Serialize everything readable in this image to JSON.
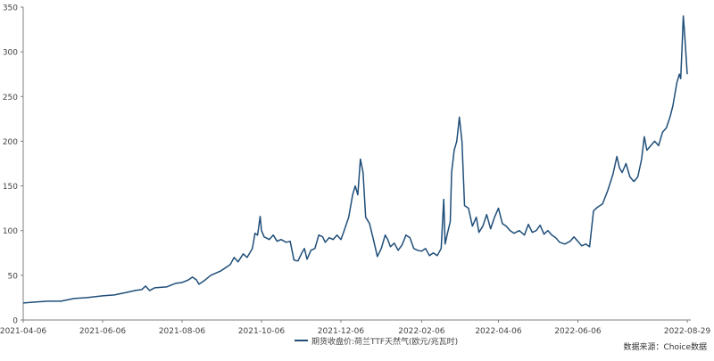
{
  "chart_data": {
    "type": "line",
    "title": "",
    "xlabel": "",
    "ylabel": "",
    "ylim": [
      0,
      350
    ],
    "y_ticks": [
      0,
      50,
      100,
      150,
      200,
      250,
      300,
      350
    ],
    "x_ticks": [
      "2021-04-06",
      "2021-06-06",
      "2021-08-06",
      "2021-10-06",
      "2021-12-06",
      "2022-02-06",
      "2022-04-06",
      "2022-06-06",
      "2022-08-29"
    ],
    "grid": false,
    "legend_position": "bottom-center",
    "series": [
      {
        "name": "期货收盘价:荷兰TTF天然气(欧元/兆瓦时)",
        "color": "#1f4e79",
        "points": [
          [
            "2021-04-06",
            19
          ],
          [
            "2021-04-15",
            20
          ],
          [
            "2021-04-25",
            21
          ],
          [
            "2021-05-05",
            21
          ],
          [
            "2021-05-15",
            24
          ],
          [
            "2021-05-25",
            25
          ],
          [
            "2021-06-06",
            27
          ],
          [
            "2021-06-15",
            28
          ],
          [
            "2021-06-25",
            31
          ],
          [
            "2021-07-01",
            33
          ],
          [
            "2021-07-06",
            34
          ],
          [
            "2021-07-09",
            38
          ],
          [
            "2021-07-12",
            33
          ],
          [
            "2021-07-16",
            36
          ],
          [
            "2021-07-25",
            37
          ],
          [
            "2021-08-01",
            41
          ],
          [
            "2021-08-06",
            42
          ],
          [
            "2021-08-11",
            45
          ],
          [
            "2021-08-14",
            48
          ],
          [
            "2021-08-17",
            45
          ],
          [
            "2021-08-19",
            40
          ],
          [
            "2021-08-23",
            44
          ],
          [
            "2021-08-28",
            50
          ],
          [
            "2021-09-05",
            55
          ],
          [
            "2021-09-12",
            62
          ],
          [
            "2021-09-15",
            70
          ],
          [
            "2021-09-18",
            65
          ],
          [
            "2021-09-22",
            74
          ],
          [
            "2021-09-25",
            70
          ],
          [
            "2021-09-29",
            80
          ],
          [
            "2021-10-01",
            97
          ],
          [
            "2021-10-03",
            95
          ],
          [
            "2021-10-05",
            116
          ],
          [
            "2021-10-06",
            100
          ],
          [
            "2021-10-08",
            93
          ],
          [
            "2021-10-12",
            90
          ],
          [
            "2021-10-15",
            95
          ],
          [
            "2021-10-18",
            88
          ],
          [
            "2021-10-21",
            90
          ],
          [
            "2021-10-25",
            87
          ],
          [
            "2021-10-28",
            88
          ],
          [
            "2021-10-31",
            67
          ],
          [
            "2021-11-03",
            66
          ],
          [
            "2021-11-06",
            75
          ],
          [
            "2021-11-08",
            80
          ],
          [
            "2021-11-10",
            68
          ],
          [
            "2021-11-13",
            78
          ],
          [
            "2021-11-16",
            80
          ],
          [
            "2021-11-19",
            95
          ],
          [
            "2021-11-22",
            93
          ],
          [
            "2021-11-24",
            87
          ],
          [
            "2021-11-27",
            92
          ],
          [
            "2021-11-30",
            90
          ],
          [
            "2021-12-03",
            95
          ],
          [
            "2021-12-06",
            90
          ],
          [
            "2021-12-09",
            102
          ],
          [
            "2021-12-12",
            115
          ],
          [
            "2021-12-15",
            140
          ],
          [
            "2021-12-17",
            150
          ],
          [
            "2021-12-19",
            140
          ],
          [
            "2021-12-21",
            180
          ],
          [
            "2021-12-23",
            165
          ],
          [
            "2021-12-25",
            115
          ],
          [
            "2021-12-28",
            108
          ],
          [
            "2021-12-31",
            90
          ],
          [
            "2022-01-03",
            71
          ],
          [
            "2022-01-06",
            80
          ],
          [
            "2022-01-09",
            95
          ],
          [
            "2022-01-11",
            90
          ],
          [
            "2022-01-13",
            82
          ],
          [
            "2022-01-16",
            86
          ],
          [
            "2022-01-19",
            78
          ],
          [
            "2022-01-22",
            84
          ],
          [
            "2022-01-25",
            95
          ],
          [
            "2022-01-28",
            92
          ],
          [
            "2022-01-31",
            80
          ],
          [
            "2022-02-03",
            78
          ],
          [
            "2022-02-06",
            77
          ],
          [
            "2022-02-09",
            80
          ],
          [
            "2022-02-12",
            72
          ],
          [
            "2022-02-15",
            75
          ],
          [
            "2022-02-18",
            72
          ],
          [
            "2022-02-21",
            80
          ],
          [
            "2022-02-23",
            135
          ],
          [
            "2022-02-24",
            85
          ],
          [
            "2022-02-26",
            98
          ],
          [
            "2022-02-28",
            110
          ],
          [
            "2022-03-01",
            165
          ],
          [
            "2022-03-03",
            190
          ],
          [
            "2022-03-05",
            200
          ],
          [
            "2022-03-07",
            227
          ],
          [
            "2022-03-09",
            200
          ],
          [
            "2022-03-11",
            128
          ],
          [
            "2022-03-14",
            125
          ],
          [
            "2022-03-17",
            105
          ],
          [
            "2022-03-20",
            115
          ],
          [
            "2022-03-22",
            98
          ],
          [
            "2022-03-25",
            105
          ],
          [
            "2022-03-28",
            118
          ],
          [
            "2022-03-31",
            102
          ],
          [
            "2022-04-03",
            115
          ],
          [
            "2022-04-06",
            125
          ],
          [
            "2022-04-09",
            108
          ],
          [
            "2022-04-12",
            105
          ],
          [
            "2022-04-15",
            100
          ],
          [
            "2022-04-18",
            97
          ],
          [
            "2022-04-22",
            100
          ],
          [
            "2022-04-26",
            95
          ],
          [
            "2022-04-29",
            107
          ],
          [
            "2022-05-02",
            98
          ],
          [
            "2022-05-05",
            100
          ],
          [
            "2022-05-08",
            106
          ],
          [
            "2022-05-11",
            96
          ],
          [
            "2022-05-14",
            100
          ],
          [
            "2022-05-17",
            95
          ],
          [
            "2022-05-20",
            92
          ],
          [
            "2022-05-23",
            87
          ],
          [
            "2022-05-27",
            85
          ],
          [
            "2022-05-31",
            88
          ],
          [
            "2022-06-03",
            93
          ],
          [
            "2022-06-06",
            88
          ],
          [
            "2022-06-09",
            83
          ],
          [
            "2022-06-12",
            85
          ],
          [
            "2022-06-15",
            82
          ],
          [
            "2022-06-18",
            122
          ],
          [
            "2022-06-21",
            126
          ],
          [
            "2022-06-25",
            130
          ],
          [
            "2022-06-29",
            145
          ],
          [
            "2022-07-03",
            163
          ],
          [
            "2022-07-06",
            183
          ],
          [
            "2022-07-08",
            170
          ],
          [
            "2022-07-10",
            165
          ],
          [
            "2022-07-13",
            175
          ],
          [
            "2022-07-16",
            160
          ],
          [
            "2022-07-19",
            155
          ],
          [
            "2022-07-22",
            160
          ],
          [
            "2022-07-25",
            180
          ],
          [
            "2022-07-27",
            205
          ],
          [
            "2022-07-29",
            190
          ],
          [
            "2022-08-01",
            195
          ],
          [
            "2022-08-04",
            200
          ],
          [
            "2022-08-07",
            195
          ],
          [
            "2022-08-10",
            210
          ],
          [
            "2022-08-13",
            215
          ],
          [
            "2022-08-16",
            228
          ],
          [
            "2022-08-18",
            240
          ],
          [
            "2022-08-21",
            265
          ],
          [
            "2022-08-23",
            275
          ],
          [
            "2022-08-24",
            270
          ],
          [
            "2022-08-25",
            305
          ],
          [
            "2022-08-26",
            340
          ],
          [
            "2022-08-27",
            320
          ],
          [
            "2022-08-29",
            275
          ]
        ]
      }
    ]
  },
  "source_note": "数据来源：Choice数据"
}
